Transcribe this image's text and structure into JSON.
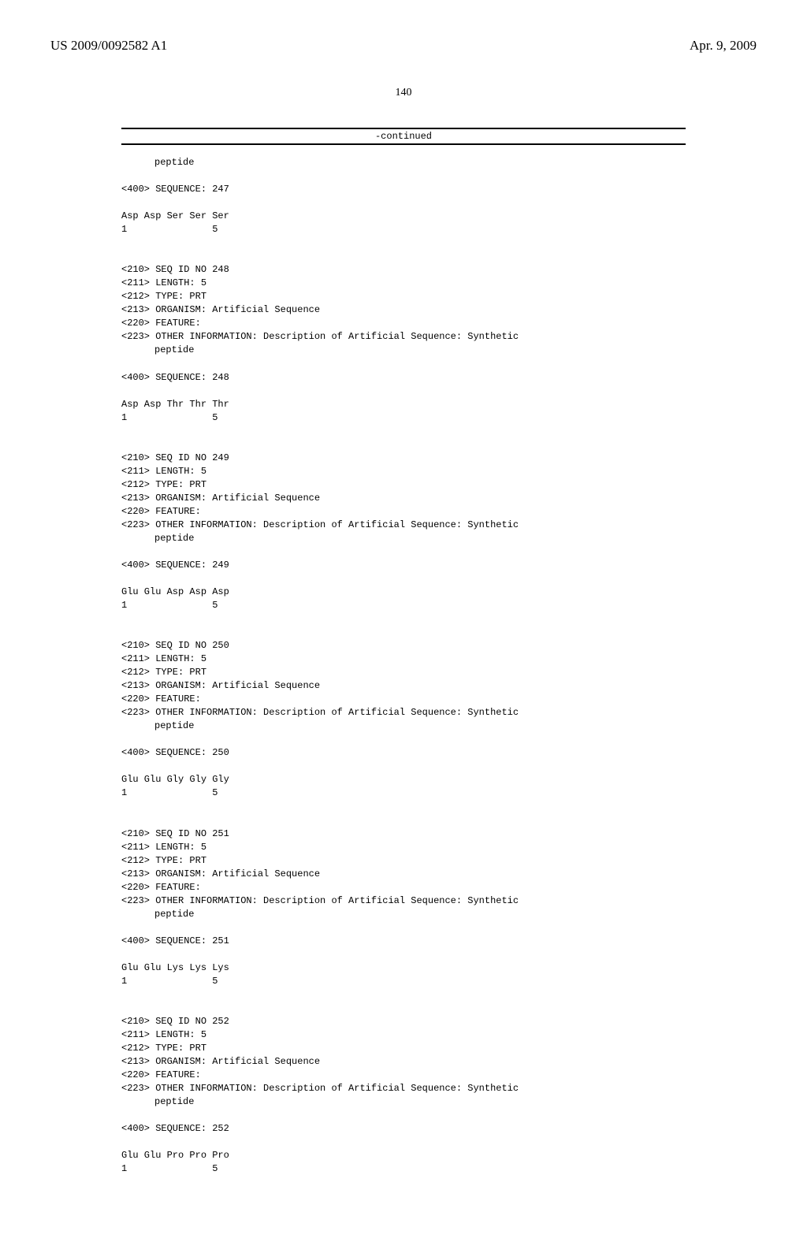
{
  "header": {
    "pub_number": "US 2009/0092582 A1",
    "pub_date": "Apr. 9, 2009"
  },
  "page_number": "140",
  "continued_label": "-continued",
  "intro": {
    "indent_line": "peptide",
    "seq400": "<400> SEQUENCE: 247",
    "aa": "Asp Asp Ser Ser Ser",
    "nums": "1               5"
  },
  "blocks": [
    {
      "lines": [
        "<210> SEQ ID NO 248",
        "<211> LENGTH: 5",
        "<212> TYPE: PRT",
        "<213> ORGANISM: Artificial Sequence",
        "<220> FEATURE:",
        "<223> OTHER INFORMATION: Description of Artificial Sequence: Synthetic"
      ],
      "indent_line": "peptide",
      "seq400": "<400> SEQUENCE: 248",
      "aa": "Asp Asp Thr Thr Thr",
      "nums": "1               5"
    },
    {
      "lines": [
        "<210> SEQ ID NO 249",
        "<211> LENGTH: 5",
        "<212> TYPE: PRT",
        "<213> ORGANISM: Artificial Sequence",
        "<220> FEATURE:",
        "<223> OTHER INFORMATION: Description of Artificial Sequence: Synthetic"
      ],
      "indent_line": "peptide",
      "seq400": "<400> SEQUENCE: 249",
      "aa": "Glu Glu Asp Asp Asp",
      "nums": "1               5"
    },
    {
      "lines": [
        "<210> SEQ ID NO 250",
        "<211> LENGTH: 5",
        "<212> TYPE: PRT",
        "<213> ORGANISM: Artificial Sequence",
        "<220> FEATURE:",
        "<223> OTHER INFORMATION: Description of Artificial Sequence: Synthetic"
      ],
      "indent_line": "peptide",
      "seq400": "<400> SEQUENCE: 250",
      "aa": "Glu Glu Gly Gly Gly",
      "nums": "1               5"
    },
    {
      "lines": [
        "<210> SEQ ID NO 251",
        "<211> LENGTH: 5",
        "<212> TYPE: PRT",
        "<213> ORGANISM: Artificial Sequence",
        "<220> FEATURE:",
        "<223> OTHER INFORMATION: Description of Artificial Sequence: Synthetic"
      ],
      "indent_line": "peptide",
      "seq400": "<400> SEQUENCE: 251",
      "aa": "Glu Glu Lys Lys Lys",
      "nums": "1               5"
    },
    {
      "lines": [
        "<210> SEQ ID NO 252",
        "<211> LENGTH: 5",
        "<212> TYPE: PRT",
        "<213> ORGANISM: Artificial Sequence",
        "<220> FEATURE:",
        "<223> OTHER INFORMATION: Description of Artificial Sequence: Synthetic"
      ],
      "indent_line": "peptide",
      "seq400": "<400> SEQUENCE: 252",
      "aa": "Glu Glu Pro Pro Pro",
      "nums": "1               5"
    }
  ]
}
